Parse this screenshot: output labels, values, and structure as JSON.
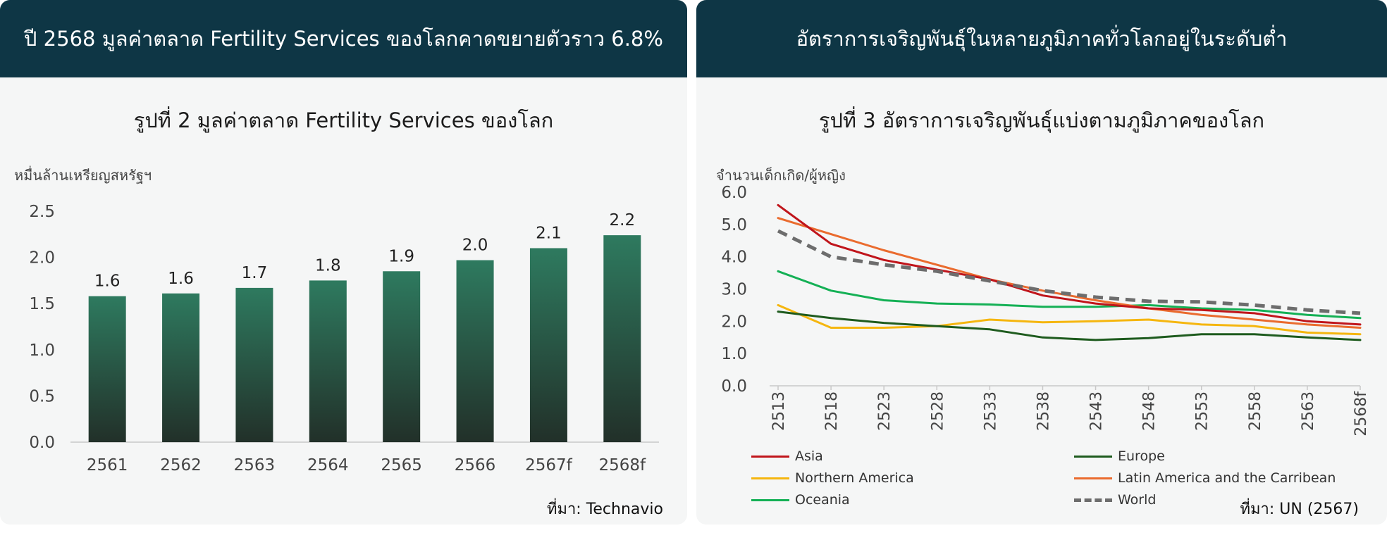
{
  "left_panel": {
    "header": "ปี 2568 มูลค่าตลาด Fertility Services ของโลกคาดขยายตัวราว 6.8%",
    "chart_title": "รูปที่ 2 มูลค่าตลาด Fertility Services ของโลก",
    "unit": "หมื่นล้านเหรียญสหรัฐฯ",
    "source": "ที่มา: Technavio"
  },
  "right_panel": {
    "header": "อัตราการเจริญพันธุ์ในหลายภูมิภาคทั่วโลกอยู่ในระดับต่ำ",
    "chart_title": "รูปที่ 3 อัตราการเจริญพันธุ์แบ่งตามภูมิภาคของโลก",
    "unit": "จำนวนเด็กเกิด/ผู้หญิง",
    "source": "ที่มา: UN (2567)"
  },
  "chart_data": [
    {
      "type": "bar",
      "title": "รูปที่ 2 มูลค่าตลาด Fertility Services ของโลก",
      "ylabel": "หมื่นล้านเหรียญสหรัฐฯ",
      "categories": [
        "2561",
        "2562",
        "2563",
        "2564",
        "2565",
        "2566",
        "2567f",
        "2568f"
      ],
      "values": [
        1.58,
        1.61,
        1.67,
        1.75,
        1.85,
        1.97,
        2.1,
        2.24
      ],
      "data_labels": [
        "1.6",
        "1.6",
        "1.7",
        "1.8",
        "1.9",
        "2.0",
        "2.1",
        "2.2"
      ],
      "ylim": [
        0,
        2.5
      ],
      "yticks": [
        "0.0",
        "0.5",
        "1.0",
        "1.5",
        "2.0",
        "2.5"
      ],
      "grid": false,
      "bar_color_top": "#2e7a5f",
      "bar_color_bottom": "#223029"
    },
    {
      "type": "line",
      "title": "รูปที่ 3 อัตราการเจริญพันธุ์แบ่งตามภูมิภาคของโลก",
      "ylabel": "จำนวนเด็กเกิด/ผู้หญิง",
      "x": [
        2513,
        2518,
        2523,
        2528,
        2533,
        2538,
        2543,
        2548,
        2553,
        2558,
        2563,
        2568
      ],
      "xtick_labels": [
        "2513",
        "2518",
        "2523",
        "2528",
        "2533",
        "2538",
        "2543",
        "2548",
        "2553",
        "2558",
        "2563",
        "2568f"
      ],
      "ylim": [
        0,
        6
      ],
      "yticks": [
        "0.0",
        "1.0",
        "2.0",
        "3.0",
        "4.0",
        "5.0",
        "6.0"
      ],
      "grid": false,
      "legend_position": "bottom",
      "series": [
        {
          "name": "Asia",
          "color": "#c0151b",
          "dashed": false,
          "values": [
            5.6,
            4.4,
            3.9,
            3.6,
            3.3,
            2.8,
            2.55,
            2.4,
            2.35,
            2.25,
            2.0,
            1.9
          ]
        },
        {
          "name": "Europe",
          "color": "#1e5b1e",
          "dashed": false,
          "values": [
            2.3,
            2.1,
            1.95,
            1.85,
            1.75,
            1.5,
            1.42,
            1.48,
            1.6,
            1.6,
            1.5,
            1.42
          ]
        },
        {
          "name": "Northern America",
          "color": "#f5b60f",
          "dashed": false,
          "values": [
            2.5,
            1.8,
            1.8,
            1.85,
            2.05,
            1.97,
            2.0,
            2.05,
            1.9,
            1.85,
            1.65,
            1.6
          ]
        },
        {
          "name": "Latin America and the Carribean",
          "color": "#ea6b2e",
          "dashed": false,
          "values": [
            5.2,
            4.7,
            4.2,
            3.75,
            3.3,
            2.95,
            2.65,
            2.4,
            2.2,
            2.05,
            1.9,
            1.8
          ]
        },
        {
          "name": "Oceania",
          "color": "#14b055",
          "dashed": false,
          "values": [
            3.55,
            2.95,
            2.65,
            2.55,
            2.52,
            2.45,
            2.45,
            2.5,
            2.4,
            2.35,
            2.2,
            2.1
          ]
        },
        {
          "name": "World",
          "color": "#6d6d6d",
          "dashed": true,
          "values": [
            4.8,
            4.0,
            3.75,
            3.55,
            3.25,
            2.95,
            2.75,
            2.62,
            2.6,
            2.5,
            2.35,
            2.25
          ]
        }
      ]
    }
  ]
}
